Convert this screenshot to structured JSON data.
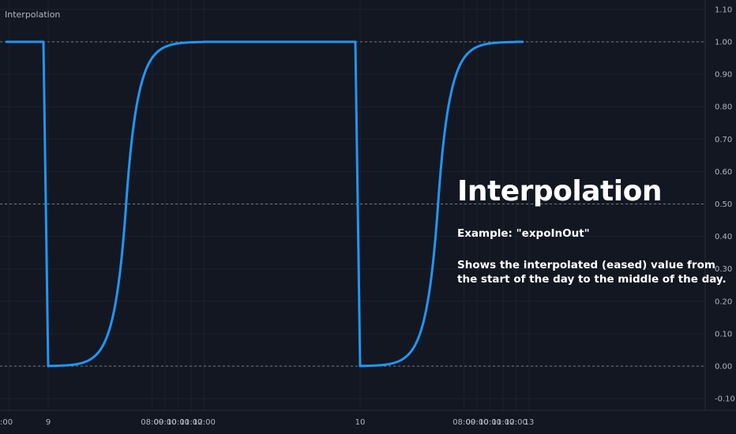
{
  "indicator": {
    "title": "Interpolation"
  },
  "annotation": {
    "heading": "Interpolation",
    "example": "Example: \"expoInOut\"",
    "line1": "Shows the interpolated (eased) value from",
    "line2": "the start of the day to the middle of the day."
  },
  "colors": {
    "background": "#131722",
    "series": "#2196f3",
    "grid": "#1e222d",
    "dashed": "#9598a1",
    "text": "#b2b5be"
  },
  "chart_data": {
    "type": "line",
    "ylim": [
      -0.12,
      1.12
    ],
    "y_ticks": [
      "1.10",
      "1.00",
      "0.90",
      "0.80",
      "0.70",
      "0.60",
      "0.50",
      "0.40",
      "0.30",
      "0.20",
      "0.10",
      "0.00",
      "-0.10"
    ],
    "y_tick_values": [
      1.1,
      1.0,
      0.9,
      0.8,
      0.7,
      0.6,
      0.5,
      0.4,
      0.3,
      0.2,
      0.1,
      0.0,
      -0.1
    ],
    "x_ticks": [
      {
        "label": ":00",
        "t": -3
      },
      {
        "label": "9",
        "t": 0
      },
      {
        "label": "08:00",
        "t": 8
      },
      {
        "label": "09:00",
        "t": 9
      },
      {
        "label": "10:00",
        "t": 10
      },
      {
        "label": "11:00",
        "t": 11
      },
      {
        "label": "12:00",
        "t": 12
      },
      {
        "label": "10",
        "t": 24
      },
      {
        "label": "08:00",
        "t": 32
      },
      {
        "label": "09:00",
        "t": 33
      },
      {
        "label": "10:00",
        "t": 34
      },
      {
        "label": "11:00",
        "t": 35
      },
      {
        "label": "12:00",
        "t": 36
      },
      {
        "label": "13",
        "t": 37
      }
    ],
    "dashed_levels": [
      1.0,
      0.5,
      0.0
    ],
    "series": [
      {
        "easing": "expoInOut",
        "segments": [
          {
            "start": -3.2,
            "drop": 0,
            "rise_start": 0,
            "rise_end": 12,
            "end": 24
          },
          {
            "start": 24,
            "drop": 24,
            "rise_start": 24,
            "rise_end": 36,
            "end": 36.5
          }
        ]
      }
    ]
  }
}
